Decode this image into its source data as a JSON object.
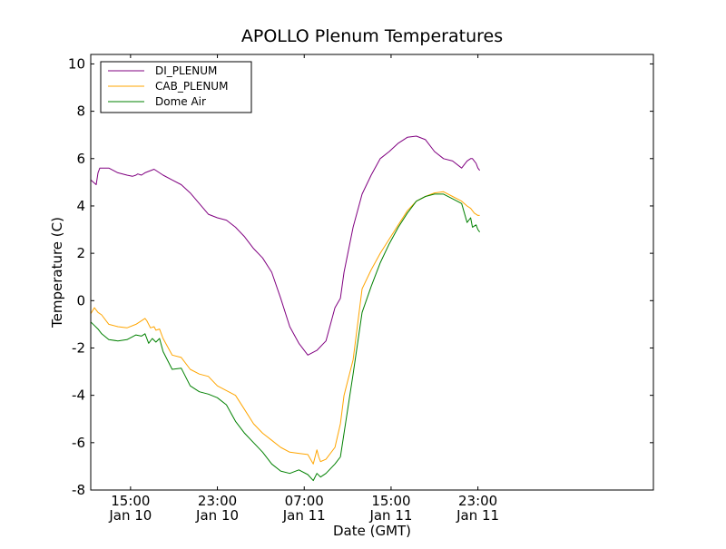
{
  "chart_data": {
    "type": "line",
    "title": "APOLLO Plenum Temperatures",
    "xlabel": "Date (GMT)",
    "ylabel": "Temperature (C)",
    "ylim": [
      -8,
      10.4
    ],
    "xlim": [
      0,
      3110
    ],
    "x_unit": "minutes since 11:20 Jan 10 (GMT)",
    "yticks": [
      {
        "value": -8,
        "label": "-8"
      },
      {
        "value": -6,
        "label": "-6"
      },
      {
        "value": -4,
        "label": "-4"
      },
      {
        "value": -2,
        "label": "-2"
      },
      {
        "value": 0,
        "label": "0"
      },
      {
        "value": 2,
        "label": "2"
      },
      {
        "value": 4,
        "label": "4"
      },
      {
        "value": 6,
        "label": "6"
      },
      {
        "value": 8,
        "label": "8"
      },
      {
        "value": 10,
        "label": "10"
      }
    ],
    "xticks": [
      {
        "value": 220,
        "label1": "15:00",
        "label2": "Jan 10"
      },
      {
        "value": 700,
        "label1": "23:00",
        "label2": "Jan 10"
      },
      {
        "value": 1180,
        "label1": "07:00",
        "label2": "Jan 11"
      },
      {
        "value": 1660,
        "label1": "15:00",
        "label2": "Jan 11"
      },
      {
        "value": 2140,
        "label1": "23:00",
        "label2": "Jan 11"
      }
    ],
    "legend_position": "top-left",
    "series": [
      {
        "name": "DI_PLENUM",
        "color": "#800080",
        "x": [
          0,
          30,
          40,
          50,
          100,
          150,
          200,
          230,
          250,
          260,
          280,
          300,
          350,
          400,
          450,
          500,
          550,
          600,
          650,
          700,
          750,
          800,
          850,
          900,
          950,
          1000,
          1050,
          1100,
          1150,
          1200,
          1250,
          1300,
          1350,
          1380,
          1400,
          1450,
          1500,
          1550,
          1600,
          1650,
          1700,
          1750,
          1800,
          1850,
          1900,
          1950,
          2000,
          2050,
          2080,
          2100,
          2110,
          2130,
          2140,
          2150
        ],
        "values": [
          5.1,
          4.9,
          5.4,
          5.6,
          5.6,
          5.4,
          5.3,
          5.25,
          5.3,
          5.35,
          5.3,
          5.4,
          5.55,
          5.3,
          5.1,
          4.9,
          4.55,
          4.1,
          3.65,
          3.5,
          3.4,
          3.1,
          2.7,
          2.2,
          1.8,
          1.2,
          0.1,
          -1.1,
          -1.8,
          -2.3,
          -2.1,
          -1.7,
          -0.3,
          0.1,
          1.2,
          3.1,
          4.5,
          5.3,
          6.0,
          6.3,
          6.65,
          6.9,
          6.95,
          6.8,
          6.3,
          6.0,
          5.9,
          5.6,
          5.9,
          6.0,
          6.0,
          5.8,
          5.6,
          5.5
        ]
      },
      {
        "name": "CAB_PLENUM",
        "color": "#ffa500",
        "x": [
          0,
          20,
          40,
          60,
          100,
          150,
          200,
          250,
          300,
          310,
          330,
          350,
          360,
          380,
          400,
          450,
          500,
          550,
          600,
          650,
          700,
          750,
          800,
          850,
          900,
          950,
          1000,
          1050,
          1100,
          1150,
          1200,
          1230,
          1250,
          1260,
          1270,
          1300,
          1350,
          1380,
          1400,
          1450,
          1500,
          1550,
          1600,
          1650,
          1700,
          1750,
          1800,
          1850,
          1900,
          1950,
          2000,
          2050,
          2080,
          2100,
          2120,
          2140,
          2150
        ],
        "values": [
          -0.55,
          -0.3,
          -0.5,
          -0.6,
          -1.0,
          -1.1,
          -1.15,
          -1.0,
          -0.75,
          -0.85,
          -1.15,
          -1.1,
          -1.25,
          -1.2,
          -1.6,
          -2.3,
          -2.4,
          -2.9,
          -3.1,
          -3.2,
          -3.6,
          -3.8,
          -4.0,
          -4.6,
          -5.2,
          -5.6,
          -5.9,
          -6.2,
          -6.4,
          -6.45,
          -6.5,
          -6.9,
          -6.3,
          -6.6,
          -6.8,
          -6.7,
          -6.2,
          -5.2,
          -4.0,
          -2.5,
          0.5,
          1.3,
          2.0,
          2.6,
          3.2,
          3.8,
          4.2,
          4.4,
          4.55,
          4.6,
          4.4,
          4.2,
          4.0,
          3.9,
          3.7,
          3.6,
          3.6
        ]
      },
      {
        "name": "Dome Air",
        "color": "#008000",
        "x": [
          0,
          20,
          40,
          60,
          100,
          150,
          200,
          250,
          280,
          300,
          320,
          340,
          360,
          380,
          400,
          450,
          500,
          550,
          600,
          650,
          700,
          750,
          800,
          850,
          900,
          950,
          1000,
          1050,
          1100,
          1150,
          1200,
          1230,
          1250,
          1270,
          1300,
          1350,
          1380,
          1400,
          1450,
          1500,
          1550,
          1600,
          1650,
          1700,
          1750,
          1800,
          1850,
          1900,
          1950,
          2000,
          2050,
          2080,
          2100,
          2110,
          2130,
          2140,
          2150
        ],
        "values": [
          -0.9,
          -1.05,
          -1.2,
          -1.4,
          -1.65,
          -1.7,
          -1.65,
          -1.45,
          -1.5,
          -1.4,
          -1.8,
          -1.6,
          -1.75,
          -1.6,
          -2.15,
          -2.9,
          -2.85,
          -3.6,
          -3.85,
          -3.95,
          -4.1,
          -4.4,
          -5.1,
          -5.6,
          -6.0,
          -6.4,
          -6.9,
          -7.2,
          -7.3,
          -7.15,
          -7.35,
          -7.6,
          -7.3,
          -7.45,
          -7.3,
          -6.9,
          -6.6,
          -5.6,
          -3.1,
          -0.5,
          0.6,
          1.6,
          2.4,
          3.1,
          3.7,
          4.2,
          4.4,
          4.5,
          4.5,
          4.3,
          4.1,
          3.3,
          3.5,
          3.1,
          3.2,
          3.0,
          2.9
        ]
      }
    ]
  }
}
